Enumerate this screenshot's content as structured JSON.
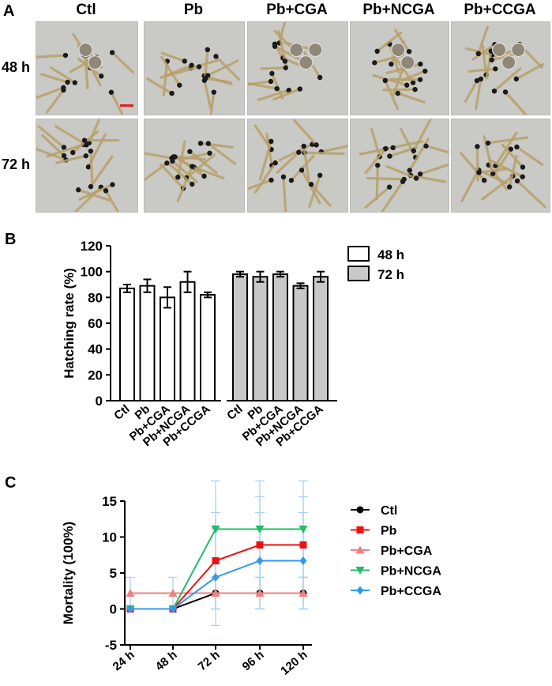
{
  "panel_a": {
    "letter": "A",
    "columns": [
      "Ctl",
      "Pb",
      "Pb+CGA",
      "Pb+NCGA",
      "Pb+CCGA"
    ],
    "rows": [
      "48 h",
      "72 h"
    ],
    "image_subject": "zebrafish-larvae-photograph",
    "colors": {
      "background": "#c9c9c6",
      "larva": "#b8a06a",
      "eye": "#1a1a1a",
      "scale_bar": "#e02020"
    }
  },
  "panel_b": {
    "letter": "B"
  },
  "panel_c": {
    "letter": "C"
  },
  "chart_data": [
    {
      "type": "bar",
      "ylabel": "Hatching rate (%)",
      "ylim": [
        0,
        120
      ],
      "yticks": [
        0,
        20,
        40,
        60,
        80,
        100,
        120
      ],
      "categories": [
        "Ctl",
        "Pb",
        "Pb+CGA",
        "Pb+NCGA",
        "Pb+CCGA"
      ],
      "legend_position": "top-right",
      "series": [
        {
          "name": "48 h",
          "color": "#ffffff",
          "values": [
            87,
            89,
            80,
            92,
            82
          ],
          "errors": [
            3,
            5,
            8,
            8,
            2
          ]
        },
        {
          "name": "72 h",
          "color": "#c8c8c8",
          "values": [
            98,
            96,
            98,
            89,
            96
          ],
          "errors": [
            2,
            4,
            2,
            2,
            4
          ]
        }
      ]
    },
    {
      "type": "line",
      "ylabel": "Mortality (100%)",
      "ylim": [
        -5,
        15
      ],
      "yticks": [
        -5,
        0,
        5,
        10,
        15
      ],
      "x": [
        "24 h",
        "48 h",
        "72 h",
        "96 h",
        "120 h"
      ],
      "legend_position": "right",
      "series": [
        {
          "name": "Ctl",
          "color": "#000000",
          "marker": "circle",
          "values": [
            0,
            0,
            2.2,
            2.2,
            2.2
          ]
        },
        {
          "name": "Pb",
          "color": "#ee1111",
          "marker": "square",
          "values": [
            0,
            0,
            6.7,
            8.9,
            8.9
          ]
        },
        {
          "name": "Pb+CGA",
          "color": "#f08080",
          "marker": "triangle-up",
          "values": [
            2.2,
            2.2,
            2.2,
            2.2,
            2.2
          ]
        },
        {
          "name": "Pb+NCGA",
          "color": "#22bb66",
          "marker": "triangle-down",
          "values": [
            0,
            0,
            11.1,
            11.1,
            11.1
          ]
        },
        {
          "name": "Pb+CCGA",
          "color": "#3399ee",
          "marker": "diamond",
          "values": [
            0,
            0,
            4.4,
            6.7,
            6.7
          ]
        }
      ],
      "error_bars": {
        "color": "#a8d4f0",
        "ctl_cga_err": 2.2,
        "treated_err": 6.7
      }
    }
  ]
}
